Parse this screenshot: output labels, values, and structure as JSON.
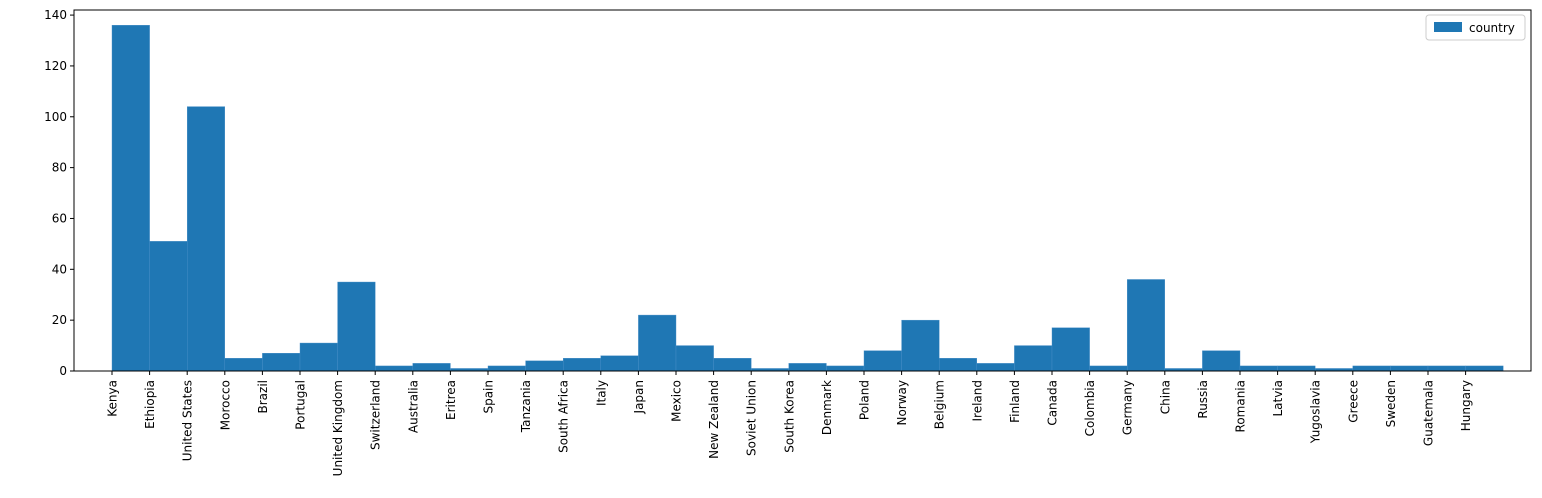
{
  "chart_data": {
    "type": "bar",
    "categories": [
      "Kenya",
      "Ethiopia",
      "United States",
      "Morocco",
      "Brazil",
      "Portugal",
      "United Kingdom",
      "Switzerland",
      "Australia",
      "Eritrea",
      "Spain",
      "Tanzania",
      "South Africa",
      "Italy",
      "Japan",
      "Mexico",
      "New Zealand",
      "Soviet Union",
      "South Korea",
      "Denmark",
      "Poland",
      "Norway",
      "Belgium",
      "Ireland",
      "Finland",
      "Canada",
      "Colombia",
      "Germany",
      "China",
      "Russia",
      "Romania",
      "Latvia",
      "Yugoslavia",
      "Greece",
      "Sweden",
      "Guatemala",
      "Hungary"
    ],
    "series": [
      {
        "name": "country",
        "values": [
          136,
          51,
          104,
          5,
          7,
          11,
          35,
          2,
          3,
          1,
          2,
          4,
          5,
          6,
          22,
          10,
          5,
          1,
          3,
          2,
          8,
          20,
          5,
          3,
          10,
          17,
          2,
          36,
          1,
          8,
          2,
          2,
          1,
          2,
          2,
          2,
          2
        ]
      }
    ],
    "title": "",
    "xlabel": "",
    "ylabel": "",
    "ylim": [
      0,
      142
    ],
    "y_ticks": [
      0,
      20,
      40,
      60,
      80,
      100,
      120,
      140
    ],
    "grid": false,
    "legend_position": "top-right",
    "colors": {
      "bar": "#1f77b4",
      "bar_edge": "#4a90c8",
      "axis": "#000000",
      "legend_border": "#cccccc"
    }
  }
}
